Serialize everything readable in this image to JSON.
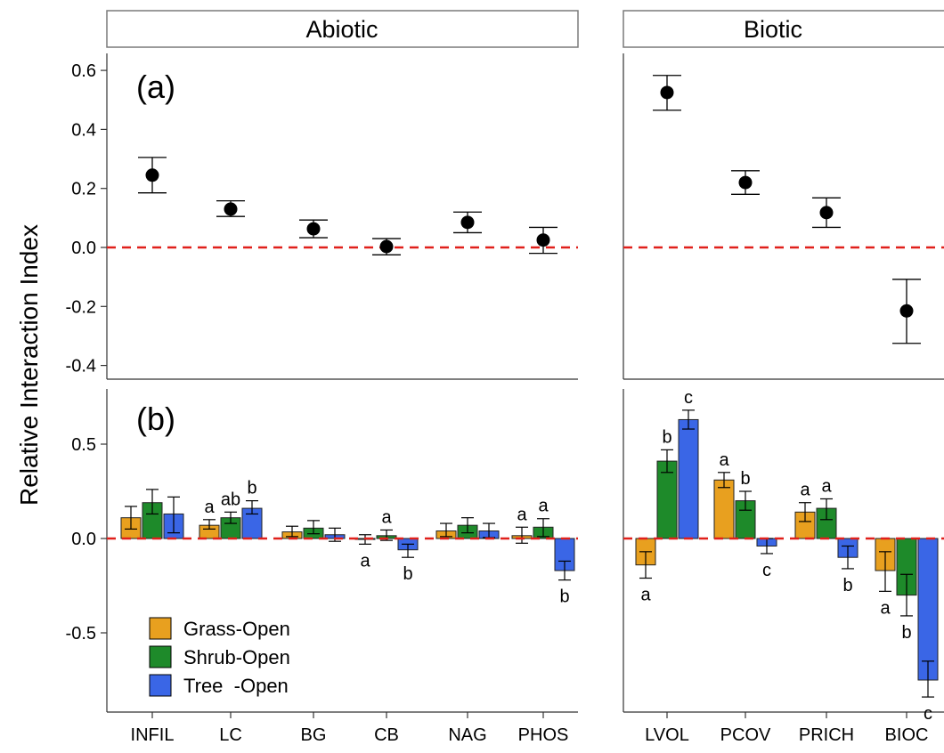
{
  "colors": {
    "grass_open": "#E8A01F",
    "shrub_open": "#1E8A2A",
    "tree_open": "#3A66E6",
    "reference_line": "#E0201B",
    "point": "#000000"
  },
  "ylabel": "Relative Interaction Index",
  "strips": [
    "Abiotic",
    "Biotic"
  ],
  "panel_labels": [
    "(a)",
    "(b)"
  ],
  "legend": [
    {
      "label": "Grass-Open",
      "color": "#E8A01F"
    },
    {
      "label": "Shrub-Open",
      "color": "#1E8A2A"
    },
    {
      "label": "Tree  -Open",
      "color": "#3A66E6"
    }
  ],
  "chart_data": [
    {
      "type": "scatter",
      "panel": "(a)",
      "ylim": [
        -0.45,
        0.65
      ],
      "yticks": [
        "0.6",
        "0.4",
        "0.2",
        "0.0",
        "-0.2",
        "-0.4"
      ],
      "facets": [
        {
          "name": "Abiotic",
          "points": [
            {
              "x": "INFIL",
              "y": 0.245,
              "lo": 0.185,
              "hi": 0.305
            },
            {
              "x": "LC",
              "y": 0.13,
              "lo": 0.105,
              "hi": 0.158
            },
            {
              "x": "BG",
              "y": 0.063,
              "lo": 0.033,
              "hi": 0.093
            },
            {
              "x": "CB",
              "y": 0.003,
              "lo": -0.025,
              "hi": 0.03
            },
            {
              "x": "NAG",
              "y": 0.085,
              "lo": 0.05,
              "hi": 0.12
            },
            {
              "x": "PHOS",
              "y": 0.025,
              "lo": -0.02,
              "hi": 0.068
            }
          ]
        },
        {
          "name": "Biotic",
          "points": [
            {
              "x": "LVOL",
              "y": 0.525,
              "lo": 0.465,
              "hi": 0.583
            },
            {
              "x": "PCOV",
              "y": 0.22,
              "lo": 0.18,
              "hi": 0.26
            },
            {
              "x": "PRICH",
              "y": 0.118,
              "lo": 0.068,
              "hi": 0.168
            },
            {
              "x": "BIOC",
              "y": -0.215,
              "lo": -0.325,
              "hi": -0.108
            }
          ]
        }
      ]
    },
    {
      "type": "bar",
      "panel": "(b)",
      "ylim": [
        -0.9,
        0.75
      ],
      "yticks": [
        "0.5",
        "0.0",
        "-0.5"
      ],
      "series": [
        "Grass-Open",
        "Shrub-Open",
        "Tree  -Open"
      ],
      "facets": [
        {
          "name": "Abiotic",
          "groups": [
            {
              "x": "INFIL",
              "bars": [
                {
                  "y": 0.11,
                  "lo": 0.05,
                  "hi": 0.17,
                  "sig": ""
                },
                {
                  "y": 0.19,
                  "lo": 0.13,
                  "hi": 0.26,
                  "sig": ""
                },
                {
                  "y": 0.13,
                  "lo": 0.03,
                  "hi": 0.22,
                  "sig": ""
                }
              ]
            },
            {
              "x": "LC",
              "bars": [
                {
                  "y": 0.07,
                  "lo": 0.05,
                  "hi": 0.1,
                  "sig": "a"
                },
                {
                  "y": 0.11,
                  "lo": 0.08,
                  "hi": 0.14,
                  "sig": "ab"
                },
                {
                  "y": 0.16,
                  "lo": 0.13,
                  "hi": 0.2,
                  "sig": "b"
                }
              ]
            },
            {
              "x": "BG",
              "bars": [
                {
                  "y": 0.035,
                  "lo": 0.01,
                  "hi": 0.065,
                  "sig": ""
                },
                {
                  "y": 0.055,
                  "lo": 0.025,
                  "hi": 0.095,
                  "sig": ""
                },
                {
                  "y": 0.02,
                  "lo": -0.015,
                  "hi": 0.055,
                  "sig": ""
                }
              ]
            },
            {
              "x": "CB",
              "bars": [
                {
                  "y": -0.005,
                  "lo": -0.03,
                  "hi": 0.02,
                  "sig": "a"
                },
                {
                  "y": 0.015,
                  "lo": -0.01,
                  "hi": 0.045,
                  "sig": "a"
                },
                {
                  "y": -0.06,
                  "lo": -0.1,
                  "hi": -0.03,
                  "sig": "b"
                }
              ]
            },
            {
              "x": "NAG",
              "bars": [
                {
                  "y": 0.04,
                  "lo": 0.01,
                  "hi": 0.08,
                  "sig": ""
                },
                {
                  "y": 0.07,
                  "lo": 0.03,
                  "hi": 0.11,
                  "sig": ""
                },
                {
                  "y": 0.04,
                  "lo": 0.005,
                  "hi": 0.08,
                  "sig": ""
                }
              ]
            },
            {
              "x": "PHOS",
              "bars": [
                {
                  "y": 0.015,
                  "lo": -0.025,
                  "hi": 0.06,
                  "sig": "a"
                },
                {
                  "y": 0.06,
                  "lo": 0.01,
                  "hi": 0.105,
                  "sig": "a"
                },
                {
                  "y": -0.17,
                  "lo": -0.22,
                  "hi": -0.12,
                  "sig": "b"
                }
              ]
            }
          ]
        },
        {
          "name": "Biotic",
          "groups": [
            {
              "x": "LVOL",
              "bars": [
                {
                  "y": -0.14,
                  "lo": -0.21,
                  "hi": -0.07,
                  "sig": "a"
                },
                {
                  "y": 0.41,
                  "lo": 0.35,
                  "hi": 0.47,
                  "sig": "b"
                },
                {
                  "y": 0.63,
                  "lo": 0.58,
                  "hi": 0.68,
                  "sig": "c"
                }
              ]
            },
            {
              "x": "PCOV",
              "bars": [
                {
                  "y": 0.31,
                  "lo": 0.27,
                  "hi": 0.35,
                  "sig": "a"
                },
                {
                  "y": 0.2,
                  "lo": 0.15,
                  "hi": 0.25,
                  "sig": "b"
                },
                {
                  "y": -0.04,
                  "lo": -0.08,
                  "hi": 0.0,
                  "sig": "c"
                }
              ]
            },
            {
              "x": "PRICH",
              "bars": [
                {
                  "y": 0.14,
                  "lo": 0.09,
                  "hi": 0.19,
                  "sig": "a"
                },
                {
                  "y": 0.16,
                  "lo": 0.1,
                  "hi": 0.21,
                  "sig": "a"
                },
                {
                  "y": -0.1,
                  "lo": -0.16,
                  "hi": -0.04,
                  "sig": "b"
                }
              ]
            },
            {
              "x": "BIOC",
              "bars": [
                {
                  "y": -0.17,
                  "lo": -0.28,
                  "hi": -0.07,
                  "sig": "a"
                },
                {
                  "y": -0.3,
                  "lo": -0.41,
                  "hi": -0.19,
                  "sig": "b"
                },
                {
                  "y": -0.75,
                  "lo": -0.84,
                  "hi": -0.65,
                  "sig": "c"
                }
              ]
            }
          ]
        }
      ]
    }
  ]
}
